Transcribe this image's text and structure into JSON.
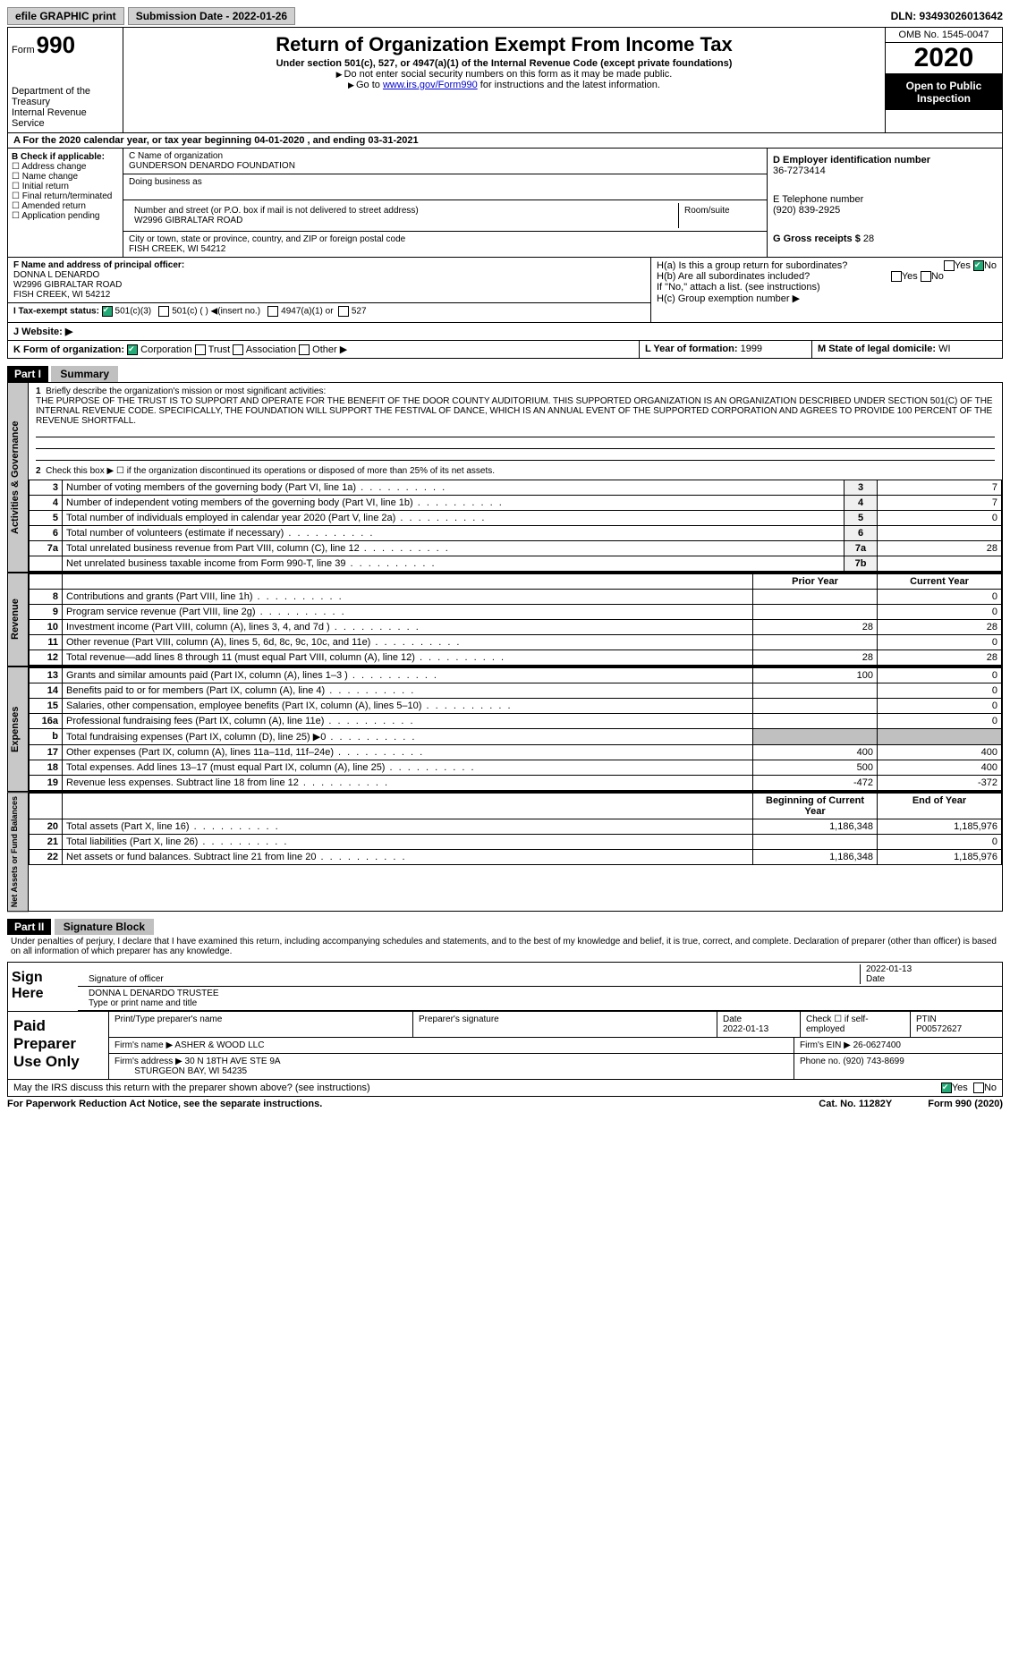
{
  "topbar": {
    "efile": "efile GRAPHIC print",
    "submission_label": "Submission Date - 2022-01-26",
    "dln_label": "DLN: 93493026013642"
  },
  "header": {
    "form_small": "Form",
    "form_num": "990",
    "dept": "Department of the Treasury",
    "irs": "Internal Revenue Service",
    "title": "Return of Organization Exempt From Income Tax",
    "sub": "Under section 501(c), 527, or 4947(a)(1) of the Internal Revenue Code (except private foundations)",
    "note1": "Do not enter social security numbers on this form as it may be made public.",
    "note2_a": "Go to ",
    "note2_link": "www.irs.gov/Form990",
    "note2_b": " for instructions and the latest information.",
    "omb": "OMB No. 1545-0047",
    "year": "2020",
    "inspect": "Open to Public Inspection"
  },
  "rowA": "A For the 2020 calendar year, or tax year beginning 04-01-2020   , and ending 03-31-2021",
  "boxB": {
    "hdr": "B Check if applicable:",
    "opts": [
      "Address change",
      "Name change",
      "Initial return",
      "Final return/terminated",
      "Amended return",
      "Application pending"
    ]
  },
  "boxC": {
    "name_lbl": "C Name of organization",
    "name": "GUNDERSON DENARDO FOUNDATION",
    "dba_lbl": "Doing business as",
    "addr_lbl": "Number and street (or P.O. box if mail is not delivered to street address)",
    "addr": "W2996 GIBRALTAR ROAD",
    "room_lbl": "Room/suite",
    "city_lbl": "City or town, state or province, country, and ZIP or foreign postal code",
    "city": "FISH CREEK, WI  54212"
  },
  "boxD": {
    "lbl": "D Employer identification number",
    "val": "36-7273414"
  },
  "boxE": {
    "lbl": "E Telephone number",
    "val": "(920) 839-2925"
  },
  "boxG": {
    "lbl": "G Gross receipts $",
    "val": "28"
  },
  "boxF": {
    "lbl": "F  Name and address of principal officer:",
    "l1": "DONNA L DENARDO",
    "l2": "W2996 GIBRALTAR ROAD",
    "l3": "FISH CREEK, WI  54212"
  },
  "boxH": {
    "ha": "H(a)  Is this a group return for subordinates?",
    "hb": "H(b)  Are all subordinates included?",
    "hb2": "If \"No,\" attach a list. (see instructions)",
    "hc": "H(c)  Group exemption number ▶",
    "yes": "Yes",
    "no": "No"
  },
  "rowI": {
    "lbl": "I  Tax-exempt status:",
    "o1": "501(c)(3)",
    "o2": "501(c) (  ) ◀(insert no.)",
    "o3": "4947(a)(1) or",
    "o4": "527"
  },
  "rowJ": "J  Website: ▶",
  "rowK": {
    "lbl": "K Form of organization:",
    "o1": "Corporation",
    "o2": "Trust",
    "o3": "Association",
    "o4": "Other ▶"
  },
  "rowL": {
    "lbl": "L Year of formation:",
    "val": "1999"
  },
  "rowM": {
    "lbl": "M State of legal domicile:",
    "val": "WI"
  },
  "part1": {
    "hdr": "Part I",
    "title": "Summary",
    "side_ag": "Activities & Governance",
    "side_rev": "Revenue",
    "side_exp": "Expenses",
    "side_net": "Net Assets or Fund Balances",
    "q1_lbl": "Briefly describe the organization's mission or most significant activities:",
    "q1_txt": "THE PURPOSE OF THE TRUST IS TO SUPPORT AND OPERATE FOR THE BENEFIT OF THE DOOR COUNTY AUDITORIUM. THIS SUPPORTED ORGANIZATION IS AN ORGANIZATION DESCRIBED UNDER SECTION 501(C) OF THE INTERNAL REVENUE CODE. SPECIFICALLY, THE FOUNDATION WILL SUPPORT THE FESTIVAL OF DANCE, WHICH IS AN ANNUAL EVENT OF THE SUPPORTED CORPORATION AND AGREES TO PROVIDE 100 PERCENT OF THE REVENUE SHORTFALL.",
    "q2": "Check this box ▶ ☐  if the organization discontinued its operations or disposed of more than 25% of its net assets.",
    "rows_ag": [
      {
        "n": "3",
        "d": "Number of voting members of the governing body (Part VI, line 1a)",
        "ln": "3",
        "v": "7"
      },
      {
        "n": "4",
        "d": "Number of independent voting members of the governing body (Part VI, line 1b)",
        "ln": "4",
        "v": "7"
      },
      {
        "n": "5",
        "d": "Total number of individuals employed in calendar year 2020 (Part V, line 2a)",
        "ln": "5",
        "v": "0"
      },
      {
        "n": "6",
        "d": "Total number of volunteers (estimate if necessary)",
        "ln": "6",
        "v": ""
      },
      {
        "n": "7a",
        "d": "Total unrelated business revenue from Part VIII, column (C), line 12",
        "ln": "7a",
        "v": "28"
      },
      {
        "n": "",
        "d": "Net unrelated business taxable income from Form 990-T, line 39",
        "ln": "7b",
        "v": ""
      }
    ],
    "col_prior": "Prior Year",
    "col_current": "Current Year",
    "rows_rev": [
      {
        "n": "8",
        "d": "Contributions and grants (Part VIII, line 1h)",
        "p": "",
        "c": "0"
      },
      {
        "n": "9",
        "d": "Program service revenue (Part VIII, line 2g)",
        "p": "",
        "c": "0"
      },
      {
        "n": "10",
        "d": "Investment income (Part VIII, column (A), lines 3, 4, and 7d )",
        "p": "28",
        "c": "28"
      },
      {
        "n": "11",
        "d": "Other revenue (Part VIII, column (A), lines 5, 6d, 8c, 9c, 10c, and 11e)",
        "p": "",
        "c": "0"
      },
      {
        "n": "12",
        "d": "Total revenue—add lines 8 through 11 (must equal Part VIII, column (A), line 12)",
        "p": "28",
        "c": "28"
      }
    ],
    "rows_exp": [
      {
        "n": "13",
        "d": "Grants and similar amounts paid (Part IX, column (A), lines 1–3 )",
        "p": "100",
        "c": "0"
      },
      {
        "n": "14",
        "d": "Benefits paid to or for members (Part IX, column (A), line 4)",
        "p": "",
        "c": "0"
      },
      {
        "n": "15",
        "d": "Salaries, other compensation, employee benefits (Part IX, column (A), lines 5–10)",
        "p": "",
        "c": "0"
      },
      {
        "n": "16a",
        "d": "Professional fundraising fees (Part IX, column (A), line 11e)",
        "p": "",
        "c": "0"
      },
      {
        "n": "b",
        "d": "Total fundraising expenses (Part IX, column (D), line 25) ▶0",
        "p": "shade",
        "c": "shade"
      },
      {
        "n": "17",
        "d": "Other expenses (Part IX, column (A), lines 11a–11d, 11f–24e)",
        "p": "400",
        "c": "400"
      },
      {
        "n": "18",
        "d": "Total expenses. Add lines 13–17 (must equal Part IX, column (A), line 25)",
        "p": "500",
        "c": "400"
      },
      {
        "n": "19",
        "d": "Revenue less expenses. Subtract line 18 from line 12",
        "p": "-472",
        "c": "-372"
      }
    ],
    "col_begin": "Beginning of Current Year",
    "col_end": "End of Year",
    "rows_net": [
      {
        "n": "20",
        "d": "Total assets (Part X, line 16)",
        "p": "1,186,348",
        "c": "1,185,976"
      },
      {
        "n": "21",
        "d": "Total liabilities (Part X, line 26)",
        "p": "",
        "c": "0"
      },
      {
        "n": "22",
        "d": "Net assets or fund balances. Subtract line 21 from line 20",
        "p": "1,186,348",
        "c": "1,185,976"
      }
    ]
  },
  "part2": {
    "hdr": "Part II",
    "title": "Signature Block",
    "decl": "Under penalties of perjury, I declare that I have examined this return, including accompanying schedules and statements, and to the best of my knowledge and belief, it is true, correct, and complete. Declaration of preparer (other than officer) is based on all information of which preparer has any knowledge.",
    "sign_here": "Sign Here",
    "sig_officer": "Signature of officer",
    "sig_date": "2022-01-13",
    "date_lbl": "Date",
    "name_title": "DONNA L DENARDO  TRUSTEE",
    "name_lbl": "Type or print name and title",
    "paid": "Paid Preparer Use Only",
    "prep_name_lbl": "Print/Type preparer's name",
    "prep_sig_lbl": "Preparer's signature",
    "prep_date_lbl": "Date",
    "prep_date": "2022-01-13",
    "prep_self": "Check ☐ if self-employed",
    "ptin_lbl": "PTIN",
    "ptin": "P00572627",
    "firm_name_lbl": "Firm's name    ▶",
    "firm_name": "ASHER & WOOD LLC",
    "firm_ein_lbl": "Firm's EIN ▶",
    "firm_ein": "26-0627400",
    "firm_addr_lbl": "Firm's address ▶",
    "firm_addr1": "30 N 18TH AVE STE 9A",
    "firm_addr2": "STURGEON BAY, WI  54235",
    "phone_lbl": "Phone no.",
    "phone": "(920) 743-8699",
    "discuss": "May the IRS discuss this return with the preparer shown above? (see instructions)",
    "yes": "Yes",
    "no": "No"
  },
  "footer": {
    "left": "For Paperwork Reduction Act Notice, see the separate instructions.",
    "mid": "Cat. No. 11282Y",
    "right": "Form 990 (2020)"
  }
}
